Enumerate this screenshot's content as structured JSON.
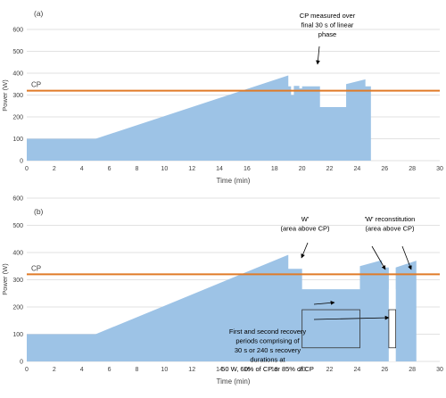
{
  "chart_data": [
    {
      "type": "area",
      "panel_label": "(a)",
      "xlabel": "Time (min)",
      "ylabel": "Power (W)",
      "xlim": [
        0,
        30
      ],
      "ylim": [
        0,
        600
      ],
      "x_ticks": [
        0,
        2,
        4,
        6,
        8,
        10,
        12,
        14,
        16,
        18,
        20,
        22,
        24,
        26,
        28,
        30
      ],
      "y_ticks": [
        0,
        100,
        200,
        300,
        400,
        500,
        600
      ],
      "fill_color": "#9dc3e6",
      "cp_line": {
        "label": "CP",
        "value": 320,
        "color": "#e07b28"
      },
      "series": [
        {
          "x": [
            0,
            5,
            19,
            19,
            19.2,
            19.2,
            19.4,
            19.4,
            19.8,
            19.8,
            20.0,
            20.0,
            21.3,
            21.3,
            23.2,
            23.2,
            24.6,
            24.6,
            25.0,
            25.0
          ],
          "y": [
            100,
            100,
            390,
            340,
            340,
            300,
            300,
            342,
            342,
            330,
            330,
            340,
            340,
            245,
            245,
            350,
            372,
            340,
            340,
            0
          ]
        }
      ],
      "annotations": [
        {
          "text": [
            "CP measured over",
            "final 30 s of linear",
            "phase"
          ],
          "x": 20.6,
          "y": 425
        }
      ]
    },
    {
      "type": "area",
      "panel_label": "(b)",
      "xlabel": "Time (min)",
      "ylabel": "Power (W)",
      "xlim": [
        0,
        30
      ],
      "ylim": [
        0,
        600
      ],
      "x_ticks": [
        0,
        2,
        4,
        6,
        8,
        10,
        12,
        14,
        16,
        18,
        20,
        22,
        24,
        26,
        28,
        30
      ],
      "y_ticks": [
        0,
        100,
        200,
        300,
        400,
        500,
        600
      ],
      "fill_color": "#9dc3e6",
      "cp_line": {
        "label": "CP",
        "value": 320,
        "color": "#e07b28"
      },
      "series": [
        {
          "x": [
            0,
            5,
            19,
            19,
            20,
            20,
            24.2,
            24.2,
            25.8,
            25.8,
            26.3,
            26.3,
            26.8,
            26.8,
            28.3,
            28.3,
            28.3
          ],
          "y": [
            100,
            100,
            392,
            340,
            340,
            265,
            265,
            350,
            372,
            345,
            345,
            0,
            0,
            345,
            370,
            345,
            0
          ]
        }
      ],
      "annotations": [
        {
          "text": [
            "W'",
            "(area above CP)"
          ],
          "x": 20.0,
          "y": 545
        },
        {
          "text": [
            "'W' reconstitution",
            "(area above CP)"
          ],
          "x": 27.4,
          "y": 545
        },
        {
          "text": [
            "First and second recovery",
            "periods comprising of",
            "30 s or 240 s recovery",
            "durations at",
            "50 W, 60% of CP or 85% of CP"
          ],
          "x": 18.8,
          "y": 140
        }
      ]
    }
  ]
}
